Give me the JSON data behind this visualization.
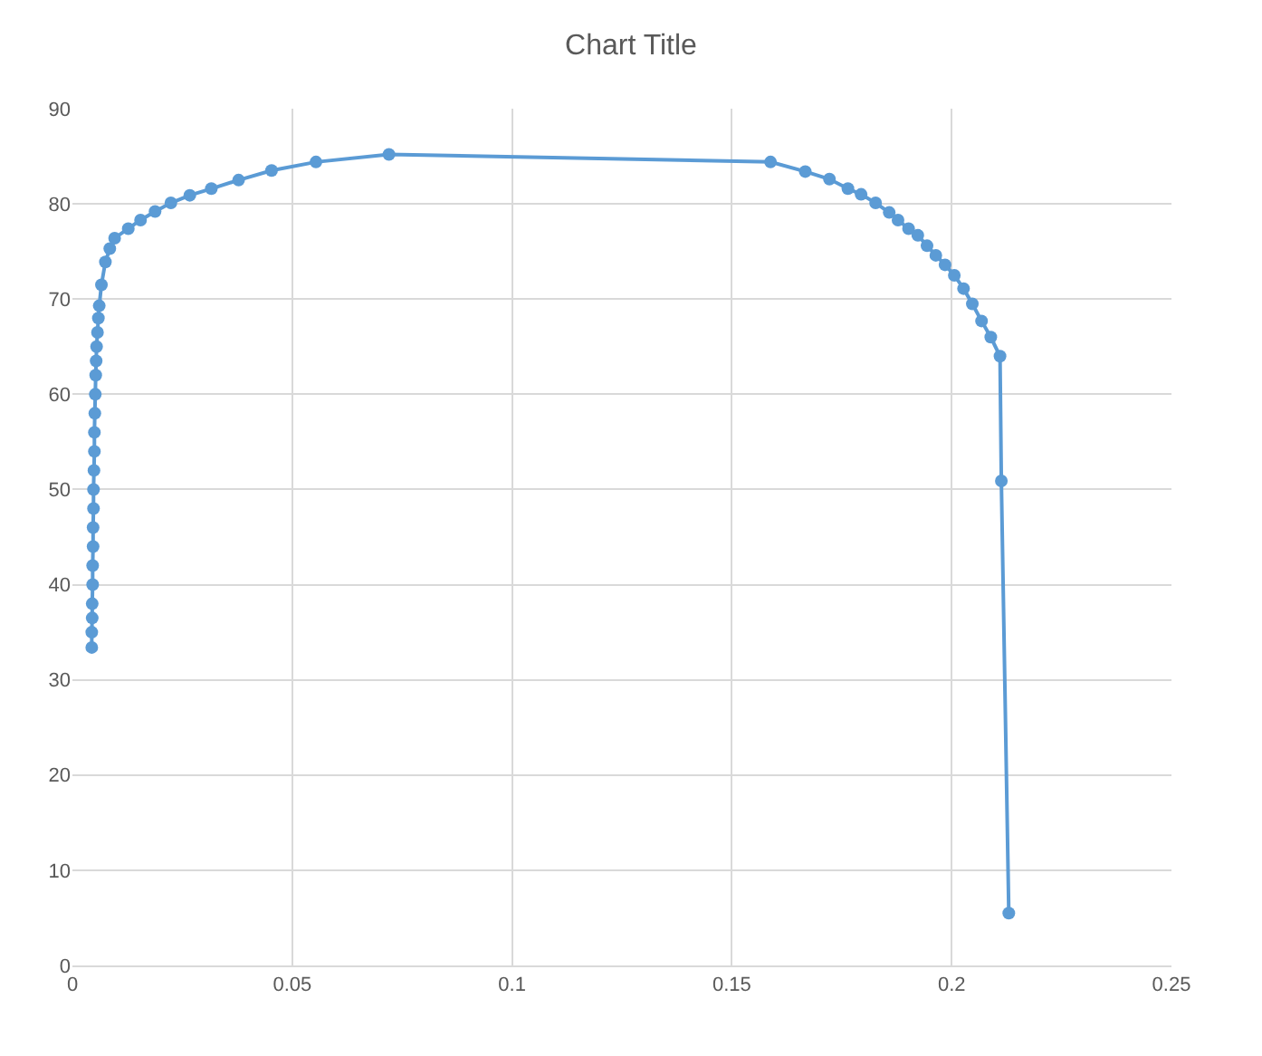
{
  "chart_data": {
    "type": "line",
    "title": "Chart Title",
    "x": [
      0.0044,
      0.0044,
      0.0045,
      0.0045,
      0.0046,
      0.0046,
      0.0047,
      0.0047,
      0.0048,
      0.0048,
      0.0049,
      0.005,
      0.005,
      0.0051,
      0.0052,
      0.0053,
      0.0054,
      0.0055,
      0.0057,
      0.0059,
      0.0061,
      0.0066,
      0.0075,
      0.0085,
      0.0096,
      0.0127,
      0.0155,
      0.0188,
      0.0224,
      0.0267,
      0.0316,
      0.0378,
      0.0453,
      0.0554,
      0.072,
      0.1588,
      0.1667,
      0.1722,
      0.1764,
      0.1794,
      0.1827,
      0.1858,
      0.1878,
      0.1902,
      0.1923,
      0.1944,
      0.1964,
      0.1985,
      0.2006,
      0.2027,
      0.2047,
      0.2068,
      0.2089,
      0.211,
      0.2113,
      0.213
    ],
    "series": [
      {
        "color": "#5b9bd5",
        "line_style": "solid",
        "values": [
          33.4,
          35,
          36.5,
          38,
          40,
          42,
          44,
          46,
          48,
          50,
          52,
          54,
          56,
          58,
          60,
          62,
          63.5,
          65,
          66.5,
          68,
          69.3,
          71.5,
          73.9,
          75.3,
          76.4,
          77.4,
          78.3,
          79.2,
          80.1,
          80.9,
          81.6,
          82.5,
          83.5,
          84.4,
          85.2,
          84.4,
          83.4,
          82.6,
          81.6,
          81,
          80.1,
          79.1,
          78.3,
          77.4,
          76.7,
          75.6,
          74.6,
          73.6,
          72.5,
          71.1,
          69.5,
          67.7,
          66,
          64,
          50.9,
          5.5
        ]
      }
    ],
    "marker": "circle",
    "xlim": [
      0,
      0.25
    ],
    "xticks": [
      0,
      0.05,
      0.1,
      0.15,
      0.2,
      0.25
    ],
    "ylim": [
      0,
      90
    ],
    "yticks": [
      0,
      10,
      20,
      30,
      40,
      50,
      60,
      70,
      80,
      90
    ],
    "grid": true,
    "legend": false
  }
}
